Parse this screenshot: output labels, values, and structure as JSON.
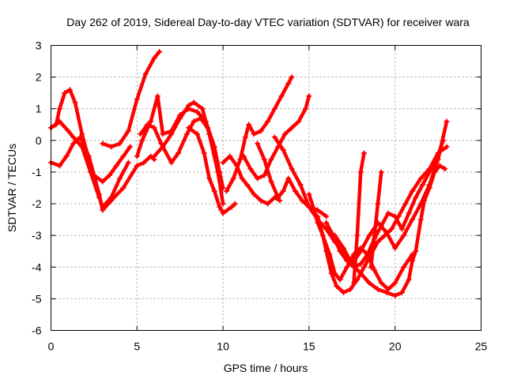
{
  "chart_data": {
    "type": "scatter",
    "title": "Day 262 of 2019, Sidereal Day-to-day VTEC variation (SDTVAR) for receiver wara",
    "xlabel": "GPS time / hours",
    "ylabel": "SDTVAR / TECUs",
    "xlim": [
      0,
      25
    ],
    "ylim": [
      -6,
      3
    ],
    "xticks": [
      "0",
      "5",
      "10",
      "15",
      "20",
      "25"
    ],
    "yticks": [
      "3",
      "2",
      "1",
      "0",
      "-1",
      "-2",
      "-3",
      "-4",
      "-5",
      "-6"
    ],
    "grid": true,
    "marker": "+",
    "color": "#ff0000",
    "series": [
      {
        "x": [
          0.0,
          0.5,
          1.0,
          1.3,
          1.8,
          2.3,
          2.8,
          3.0,
          3.5,
          4.0,
          4.5
        ],
        "y": [
          0.4,
          0.6,
          0.3,
          0.1,
          -0.2,
          -1.0,
          -1.8,
          -2.1,
          -1.8,
          -1.2,
          -0.7
        ]
      },
      {
        "x": [
          0.0,
          0.5,
          0.9,
          1.3,
          1.7,
          2.2,
          2.8,
          3.0,
          3.5,
          4.2,
          5.0,
          5.4,
          5.8,
          6.0
        ],
        "y": [
          -0.7,
          -0.8,
          -0.5,
          -0.1,
          0.1,
          -0.5,
          -1.7,
          -2.2,
          -1.9,
          -1.5,
          -0.8,
          -0.7,
          -0.5,
          -0.6
        ]
      },
      {
        "x": [
          0.0,
          0.3,
          0.5,
          0.8,
          1.1,
          1.4,
          1.8,
          2.2,
          2.5,
          3.0,
          3.4,
          3.8,
          4.2,
          4.6
        ],
        "y": [
          0.4,
          0.5,
          1.0,
          1.5,
          1.6,
          1.2,
          0.2,
          -0.6,
          -1.1,
          -1.3,
          -1.1,
          -0.8,
          -0.5,
          -0.2
        ]
      },
      {
        "x": [
          3.0,
          3.5,
          4.0,
          4.5,
          5.0,
          5.5,
          6.0,
          6.3
        ],
        "y": [
          -0.1,
          -0.2,
          -0.1,
          0.3,
          1.3,
          2.1,
          2.6,
          2.8
        ]
      },
      {
        "x": [
          5.0,
          5.3,
          5.8,
          6.2,
          6.5,
          7.0,
          7.5,
          8.0,
          8.5,
          9.0,
          9.5,
          9.8,
          10.0
        ],
        "y": [
          -0.5,
          0.0,
          0.6,
          1.4,
          0.2,
          0.3,
          0.8,
          1.0,
          0.9,
          0.6,
          -0.2,
          -1.0,
          -1.5
        ]
      },
      {
        "x": [
          5.2,
          5.6,
          6.0,
          6.4,
          7.0,
          7.4,
          7.9,
          8.3,
          8.7,
          9.1,
          9.5,
          9.9
        ],
        "y": [
          0.2,
          0.5,
          0.4,
          -0.1,
          -0.7,
          -0.4,
          0.2,
          0.6,
          0.7,
          0.4,
          -0.4,
          -1.4
        ]
      },
      {
        "x": [
          6.0,
          6.5,
          7.0,
          7.5,
          8.0,
          8.3,
          8.8,
          9.2,
          9.7,
          10.0
        ],
        "y": [
          -0.5,
          -0.2,
          0.2,
          0.7,
          1.1,
          1.2,
          1.0,
          0.2,
          -1.0,
          -2.0
        ]
      },
      {
        "x": [
          8.0,
          8.5,
          8.9,
          9.2,
          9.5,
          9.8,
          9.9
        ],
        "y": [
          0.4,
          0.2,
          -0.4,
          -1.2,
          -1.6,
          -2.1,
          -2.2
        ]
      },
      {
        "x": [
          10.0,
          10.5,
          10.7
        ],
        "y": [
          -2.3,
          -2.1,
          -2.0
        ]
      },
      {
        "x": [
          10.0,
          10.4,
          10.8,
          11.1,
          11.4,
          11.8,
          12.2,
          12.6,
          13.0,
          13.3
        ],
        "y": [
          -0.7,
          -0.5,
          -0.8,
          -1.2,
          -1.4,
          -1.7,
          -1.9,
          -2.0,
          -1.8,
          -1.9
        ]
      },
      {
        "x": [
          10.2,
          10.6,
          11.0,
          11.3,
          11.5,
          11.8,
          12.2,
          12.6,
          13.0,
          13.4,
          13.8,
          14.0
        ],
        "y": [
          -1.6,
          -1.2,
          -0.6,
          0.1,
          0.5,
          0.2,
          0.3,
          0.6,
          1.0,
          1.4,
          1.8,
          2.0
        ]
      },
      {
        "x": [
          11.2,
          11.6,
          12.0,
          12.4,
          12.8,
          13.2,
          13.6,
          14.0,
          14.4,
          14.8,
          15.0
        ],
        "y": [
          -0.5,
          -0.9,
          -1.2,
          -1.1,
          -0.6,
          -0.2,
          0.2,
          0.4,
          0.6,
          1.0,
          1.4
        ]
      },
      {
        "x": [
          12.0,
          12.4,
          12.8,
          13.2,
          13.5,
          13.8,
          14.2,
          14.6,
          15.0,
          15.5,
          16.0
        ],
        "y": [
          -0.1,
          -0.6,
          -1.3,
          -1.8,
          -1.6,
          -1.2,
          -1.6,
          -1.9,
          -2.1,
          -2.2,
          -2.4
        ]
      },
      {
        "x": [
          13.0,
          13.5,
          14.0,
          14.5,
          15.0,
          15.5,
          16.0,
          16.5,
          17.0,
          17.5,
          18.0,
          18.5,
          19.0,
          19.5,
          20.0,
          20.4,
          20.8,
          21.0
        ],
        "y": [
          0.1,
          -0.3,
          -0.9,
          -1.4,
          -2.1,
          -2.5,
          -2.8,
          -3.2,
          -3.5,
          -3.9,
          -4.2,
          -4.5,
          -4.7,
          -4.8,
          -4.9,
          -4.8,
          -4.4,
          -3.8
        ]
      },
      {
        "x": [
          15.0,
          15.3,
          15.5,
          15.8,
          16.0,
          16.3,
          16.6,
          17.0,
          17.4,
          17.8,
          18.2,
          18.6,
          19.0,
          19.4,
          19.8,
          20.2,
          20.6,
          21.0,
          21.5,
          22.0,
          22.5,
          23.0
        ],
        "y": [
          -1.7,
          -2.2,
          -2.6,
          -3.0,
          -3.5,
          -4.2,
          -4.6,
          -4.8,
          -4.7,
          -4.4,
          -4.0,
          -3.6,
          -3.2,
          -3.0,
          -2.8,
          -2.4,
          -2.0,
          -1.6,
          -1.2,
          -0.9,
          -0.4,
          -0.2
        ]
      },
      {
        "x": [
          15.5,
          15.8,
          16.2,
          16.5,
          16.8,
          17.2,
          17.6,
          18.0,
          18.4,
          18.8,
          19.2,
          19.6,
          20.0,
          20.5,
          21.0
        ],
        "y": [
          -2.4,
          -3.0,
          -3.6,
          -4.2,
          -4.4,
          -4.0,
          -3.6,
          -3.4,
          -3.6,
          -4.1,
          -4.5,
          -4.7,
          -4.5,
          -4.0,
          -3.6
        ]
      },
      {
        "x": [
          16.0,
          16.4,
          16.8,
          17.2,
          17.6,
          18.0,
          18.4,
          18.8,
          19.2,
          19.6,
          20.0,
          20.4,
          20.8,
          21.2,
          21.6,
          22.0,
          22.4,
          22.8
        ],
        "y": [
          -2.6,
          -3.0,
          -3.5,
          -3.8,
          -4.0,
          -3.9,
          -3.6,
          -3.1,
          -2.7,
          -2.3,
          -2.4,
          -2.8,
          -2.3,
          -1.8,
          -1.4,
          -1.0,
          -0.6,
          0.0
        ]
      },
      {
        "x": [
          16.5,
          17.0,
          17.5,
          18.0,
          18.5,
          19.0,
          19.5,
          20.0,
          20.5,
          21.0,
          21.5,
          22.0,
          22.5,
          23.0
        ],
        "y": [
          -3.0,
          -3.4,
          -3.9,
          -3.5,
          -3.0,
          -2.6,
          -2.9,
          -3.4,
          -3.0,
          -2.5,
          -2.0,
          -1.4,
          -0.6,
          0.6
        ]
      },
      {
        "x": [
          17.6,
          17.8,
          18.0,
          18.2
        ],
        "y": [
          -4.5,
          -3.0,
          -1.0,
          -0.4
        ]
      },
      {
        "x": [
          18.6,
          18.8,
          19.0,
          19.2
        ],
        "y": [
          -4.0,
          -3.0,
          -2.0,
          -1.0
        ]
      },
      {
        "x": [
          21.0,
          21.2,
          21.5,
          21.7,
          22.0,
          22.3,
          22.6,
          22.9
        ],
        "y": [
          -3.8,
          -3.5,
          -2.5,
          -1.9,
          -1.5,
          -1.0,
          -0.8,
          -0.9
        ]
      }
    ]
  }
}
